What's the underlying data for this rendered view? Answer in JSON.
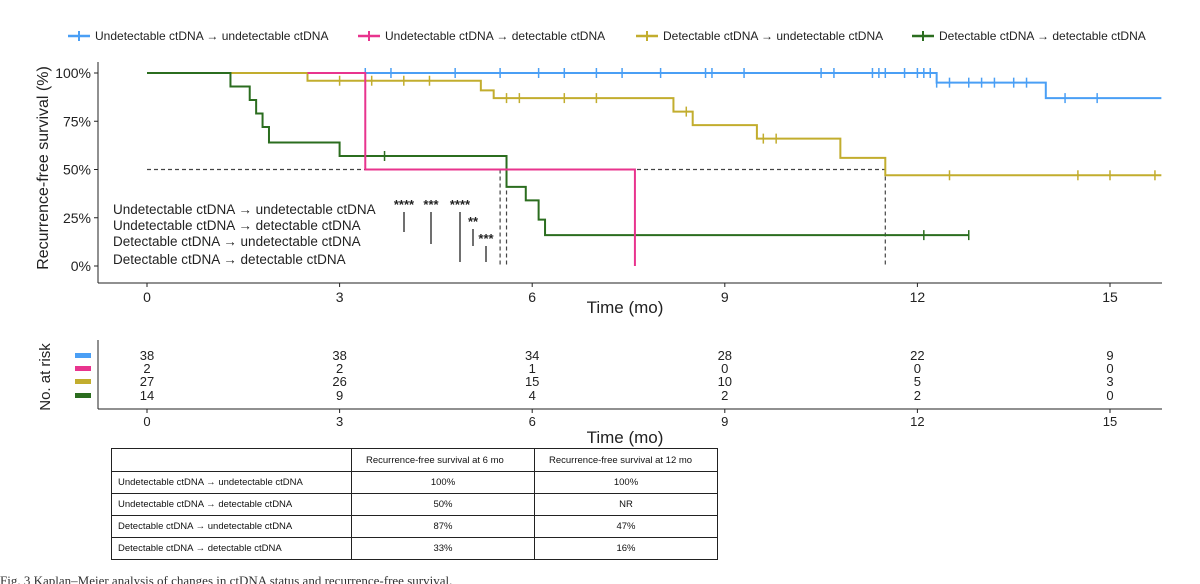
{
  "colors": {
    "undet_undet": "#4a9ff5",
    "undet_det": "#e8348e",
    "det_undet": "#c2ad2e",
    "det_det": "#2b6d1f"
  },
  "legend": [
    {
      "key": "undet_undet",
      "label": "Undetectable ctDNA → undetectable ctDNA"
    },
    {
      "key": "undet_det",
      "label": "Undetectable ctDNA → detectable ctDNA"
    },
    {
      "key": "det_undet",
      "label": "Detectable ctDNA → undetectable ctDNA"
    },
    {
      "key": "det_det",
      "label": "Detectable ctDNA → detectable ctDNA"
    }
  ],
  "chart_data": [
    {
      "type": "line",
      "subtype": "kaplan-meier",
      "title": "",
      "xlabel": "Time (mo)",
      "ylabel": "Recurrence-free survival (%)",
      "xlim": [
        0,
        15.8
      ],
      "ylim": [
        0,
        100
      ],
      "xticks": [
        0,
        3,
        6,
        9,
        12,
        15
      ],
      "yticks": [
        0,
        25,
        50,
        75,
        100
      ],
      "ytick_labels": [
        "0%",
        "25%",
        "50%",
        "75%",
        "100%"
      ],
      "median_line": 50,
      "median_markers": [
        5.5,
        5.6,
        11.5
      ],
      "series": [
        {
          "name": "Undetectable ctDNA → undetectable ctDNA",
          "key": "undet_undet",
          "steps": [
            [
              0,
              100
            ],
            [
              12.3,
              95
            ],
            [
              14.0,
              87
            ],
            [
              15.8,
              87
            ]
          ],
          "censor": [
            3.4,
            3.8,
            4.8,
            5.5,
            6.1,
            6.5,
            7.0,
            7.4,
            8.0,
            8.7,
            8.8,
            9.3,
            10.5,
            10.7,
            11.3,
            11.4,
            11.5,
            11.8,
            12.0,
            12.1,
            12.2,
            12.3,
            12.5,
            12.8,
            13.0,
            13.2,
            13.5,
            13.7,
            14.3,
            14.8
          ]
        },
        {
          "name": "Undetectable ctDNA → detectable ctDNA",
          "key": "undet_det",
          "steps": [
            [
              2.5,
              100
            ],
            [
              3.4,
              50
            ],
            [
              7.6,
              0
            ]
          ],
          "censor": []
        },
        {
          "name": "Detectable ctDNA → undetectable ctDNA",
          "key": "det_undet",
          "steps": [
            [
              0,
              100
            ],
            [
              2.5,
              96
            ],
            [
              5.2,
              91
            ],
            [
              5.4,
              87
            ],
            [
              8.2,
              80
            ],
            [
              8.5,
              73
            ],
            [
              9.5,
              66
            ],
            [
              10.8,
              56
            ],
            [
              11.5,
              47
            ],
            [
              15.8,
              47
            ]
          ],
          "censor": [
            3.0,
            3.5,
            4.0,
            4.4,
            5.6,
            5.8,
            6.5,
            7.0,
            8.4,
            9.6,
            9.8,
            12.5,
            14.5,
            15.0,
            15.7
          ]
        },
        {
          "name": "Detectable ctDNA → detectable ctDNA",
          "key": "det_det",
          "steps": [
            [
              0,
              100
            ],
            [
              1.3,
              93
            ],
            [
              1.6,
              86
            ],
            [
              1.7,
              79
            ],
            [
              1.8,
              72
            ],
            [
              1.9,
              64
            ],
            [
              3.0,
              57
            ],
            [
              5.6,
              41
            ],
            [
              5.9,
              34
            ],
            [
              6.1,
              24
            ],
            [
              6.2,
              16
            ],
            [
              12.8,
              16
            ]
          ],
          "censor": [
            3.7,
            12.1,
            12.8
          ]
        }
      ],
      "annotations": {
        "inset_labels": [
          {
            "key": "undet_undet",
            "text": "Undetectable ctDNA → undetectable ctDNA"
          },
          {
            "key": "undet_det",
            "text": "Undetectable ctDNA → detectable ctDNA"
          },
          {
            "key": "det_undet",
            "text": "Detectable ctDNA → undetectable ctDNA"
          },
          {
            "key": "det_det",
            "text": "Detectable ctDNA → detectable ctDNA"
          }
        ],
        "significance": [
          "****",
          "***",
          "****",
          "**",
          "***"
        ]
      }
    },
    {
      "type": "table",
      "title": "No. at risk",
      "xlabel": "Time (mo)",
      "xticks": [
        0,
        3,
        6,
        9,
        12,
        15
      ],
      "rows": [
        {
          "key": "undet_undet",
          "values": [
            38,
            38,
            34,
            28,
            22,
            9
          ]
        },
        {
          "key": "undet_det",
          "values": [
            2,
            2,
            1,
            0,
            0,
            0
          ]
        },
        {
          "key": "det_undet",
          "values": [
            27,
            26,
            15,
            10,
            5,
            3
          ]
        },
        {
          "key": "det_det",
          "values": [
            14,
            9,
            4,
            2,
            2,
            0
          ]
        }
      ]
    }
  ],
  "summary_table": {
    "headers": [
      "",
      "Recurrence-free survival at 6 mo",
      "Recurrence-free survival at 12 mo"
    ],
    "rows": [
      {
        "label": "Undetectable ctDNA → undetectable ctDNA",
        "m6": "100%",
        "m12": "100%"
      },
      {
        "label": "Undetectable ctDNA → detectable ctDNA",
        "m6": "50%",
        "m12": "NR"
      },
      {
        "label": "Detectable ctDNA → undetectable ctDNA",
        "m6": "87%",
        "m12": "47%"
      },
      {
        "label": "Detectable ctDNA → detectable ctDNA",
        "m6": "33%",
        "m12": "16%"
      }
    ]
  },
  "caption": "Fig. 3 Kaplan–Meier analysis of changes in ctDNA status and recurrence-free survival."
}
